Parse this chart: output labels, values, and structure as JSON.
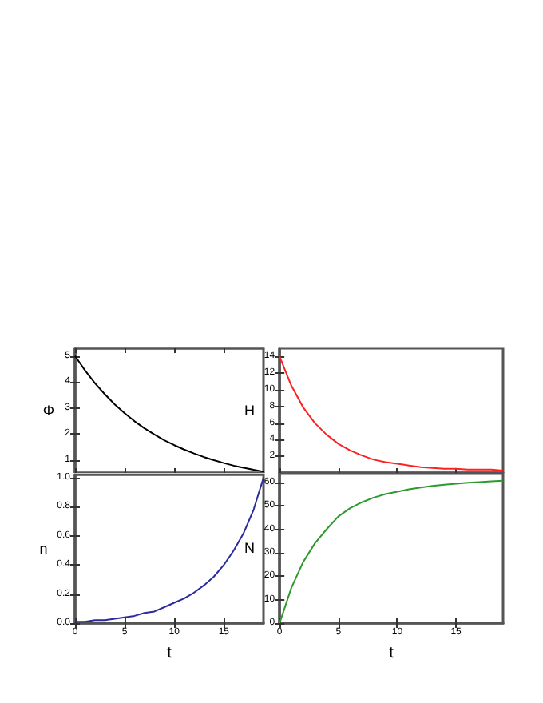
{
  "chart_data": [
    {
      "type": "line",
      "ylabel": "Φ",
      "x": [
        0,
        1,
        2,
        3,
        4,
        5,
        6,
        7,
        8,
        9,
        10,
        11,
        12,
        13,
        14,
        15,
        16,
        17,
        18,
        19
      ],
      "xlim": [
        0,
        19
      ],
      "xticks": [
        0,
        5,
        10,
        15
      ],
      "ylim": [
        0.5,
        5.3
      ],
      "yticks": [
        1,
        2,
        3,
        4,
        5
      ],
      "tick_labels": "y",
      "series": [
        {
          "color": "#000000",
          "values": [
            5,
            4.45,
            3.96,
            3.53,
            3.14,
            2.8,
            2.49,
            2.22,
            1.98,
            1.76,
            1.57,
            1.4,
            1.25,
            1.11,
            0.99,
            0.88,
            0.78,
            0.7,
            0.62,
            0.55
          ]
        }
      ]
    },
    {
      "type": "line",
      "ylabel": "H",
      "x": [
        0,
        1,
        2,
        3,
        4,
        5,
        6,
        7,
        8,
        9,
        10,
        11,
        12,
        13,
        14,
        15,
        16,
        17,
        18,
        19
      ],
      "xlim": [
        0,
        19
      ],
      "xticks": [
        0,
        5,
        10,
        15
      ],
      "ylim": [
        0,
        15
      ],
      "yticks": [
        2,
        4,
        6,
        8,
        10,
        12,
        14
      ],
      "tick_labels": "y",
      "series": [
        {
          "color": "#ff2020",
          "values": [
            14,
            10.5,
            7.9,
            6,
            4.6,
            3.5,
            2.7,
            2.1,
            1.6,
            1.3,
            1.1,
            0.9,
            0.7,
            0.6,
            0.5,
            0.5,
            0.4,
            0.4,
            0.4,
            0.3
          ]
        }
      ]
    },
    {
      "type": "line",
      "xlabel": "t",
      "ylabel": "n",
      "x": [
        0,
        1,
        2,
        3,
        4,
        5,
        6,
        7,
        8,
        9,
        10,
        11,
        12,
        13,
        14,
        15,
        16,
        17,
        18,
        19
      ],
      "xlim": [
        0,
        19
      ],
      "xticks": [
        0,
        5,
        10,
        15
      ],
      "ylim": [
        0,
        1.02
      ],
      "yticks": [
        {
          "value": 0,
          "label": "0.0"
        },
        0.2,
        0.4,
        0.6,
        0.8,
        {
          "value": 1,
          "label": "1.0"
        }
      ],
      "series": [
        {
          "color": "#2a2aa0",
          "values": [
            0.01,
            0.01,
            0.02,
            0.02,
            0.03,
            0.04,
            0.05,
            0.07,
            0.08,
            0.11,
            0.14,
            0.17,
            0.21,
            0.26,
            0.32,
            0.4,
            0.5,
            0.62,
            0.78,
            1.0
          ]
        }
      ]
    },
    {
      "type": "line",
      "xlabel": "t",
      "ylabel": "N",
      "x": [
        0,
        1,
        2,
        3,
        4,
        5,
        6,
        7,
        8,
        9,
        10,
        11,
        12,
        13,
        14,
        15,
        16,
        17,
        18,
        19
      ],
      "xlim": [
        0,
        19
      ],
      "xticks": [
        0,
        5,
        10,
        15
      ],
      "ylim": [
        0,
        64
      ],
      "yticks": [
        0,
        10,
        20,
        30,
        40,
        50,
        60
      ],
      "series": [
        {
          "color": "#2e9a2e",
          "values": [
            0,
            15,
            26,
            34,
            40,
            45.5,
            49,
            51.5,
            53.5,
            55,
            56,
            57,
            57.8,
            58.5,
            59,
            59.4,
            59.8,
            60.1,
            60.4,
            60.7
          ]
        }
      ]
    }
  ]
}
